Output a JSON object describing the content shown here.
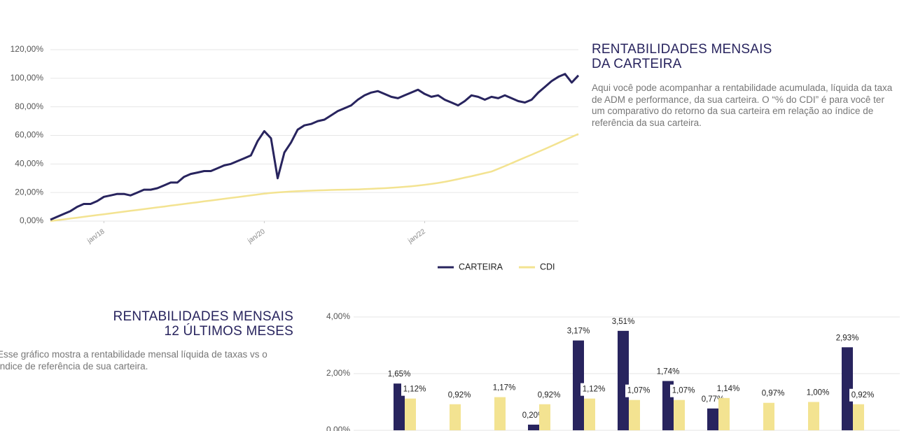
{
  "chart_data": [
    {
      "type": "line",
      "x": [
        "2017-05",
        "2017-06",
        "2017-07",
        "2017-08",
        "2017-09",
        "2017-10",
        "2017-11",
        "2017-12",
        "2018-01",
        "2018-02",
        "2018-03",
        "2018-04",
        "2018-05",
        "2018-06",
        "2018-07",
        "2018-08",
        "2018-09",
        "2018-10",
        "2018-11",
        "2018-12",
        "2019-01",
        "2019-02",
        "2019-03",
        "2019-04",
        "2019-05",
        "2019-06",
        "2019-07",
        "2019-08",
        "2019-09",
        "2019-10",
        "2019-11",
        "2019-12",
        "2020-01",
        "2020-02",
        "2020-03",
        "2020-04",
        "2020-05",
        "2020-06",
        "2020-07",
        "2020-08",
        "2020-09",
        "2020-10",
        "2020-11",
        "2020-12",
        "2021-01",
        "2021-02",
        "2021-03",
        "2021-04",
        "2021-05",
        "2021-06",
        "2021-07",
        "2021-08",
        "2021-09",
        "2021-10",
        "2021-11",
        "2021-12",
        "2022-01",
        "2022-02",
        "2022-03",
        "2022-04",
        "2022-05",
        "2022-06",
        "2022-07",
        "2022-08",
        "2022-09",
        "2022-10",
        "2022-11",
        "2022-12",
        "2023-01",
        "2023-02",
        "2023-03",
        "2023-04",
        "2023-05",
        "2023-06",
        "2023-07",
        "2023-08",
        "2023-09",
        "2023-10",
        "2023-11",
        "2023-12"
      ],
      "series": [
        {
          "name": "CARTEIRA",
          "color": "#28245e",
          "values": [
            1,
            3,
            5,
            7,
            10,
            12,
            12,
            14,
            17,
            18,
            19,
            19,
            18,
            20,
            22,
            22,
            23,
            25,
            27,
            27,
            31,
            33,
            34,
            35,
            35,
            37,
            39,
            40,
            42,
            44,
            46,
            56,
            63,
            58,
            30,
            48,
            55,
            64,
            67,
            68,
            70,
            71,
            74,
            77,
            79,
            81,
            85,
            88,
            90,
            91,
            89,
            87,
            86,
            88,
            90,
            92,
            89,
            87,
            88,
            85,
            83,
            81,
            84,
            88,
            87,
            85,
            87,
            86,
            88,
            86,
            84,
            83,
            85,
            90,
            94,
            98,
            101,
            103,
            97,
            102
          ]
        },
        {
          "name": "CDI",
          "color": "#f3e391",
          "values": [
            0,
            0.6,
            1.2,
            1.8,
            2.4,
            3,
            3.6,
            4.2,
            4.8,
            5.4,
            6,
            6.6,
            7.2,
            7.8,
            8.4,
            9,
            9.6,
            10.2,
            10.8,
            11.4,
            12,
            12.6,
            13.2,
            13.8,
            14.4,
            15,
            15.6,
            16.2,
            16.8,
            17.4,
            18,
            18.6,
            19.2,
            19.7,
            20.1,
            20.4,
            20.7,
            20.9,
            21.1,
            21.3,
            21.5,
            21.6,
            21.8,
            21.9,
            22,
            22.1,
            22.2,
            22.4,
            22.6,
            22.8,
            23,
            23.3,
            23.6,
            24,
            24.4,
            24.9,
            25.4,
            26,
            26.7,
            27.5,
            28.4,
            29.4,
            30.4,
            31.4,
            32.5,
            33.6,
            34.7,
            36.6,
            38.5,
            40.5,
            42.5,
            44.5,
            46.5,
            48.5,
            50.5,
            52.6,
            54.7,
            56.8,
            58.9,
            61
          ]
        }
      ],
      "ylim": [
        0,
        120
      ],
      "yticks": [
        {
          "value": 0,
          "label": "0,00%"
        },
        {
          "value": 20,
          "label": "20,00%"
        },
        {
          "value": 40,
          "label": "40,00%"
        },
        {
          "value": 60,
          "label": "60,00%"
        },
        {
          "value": 80,
          "label": "80,00%"
        },
        {
          "value": 100,
          "label": "100,00%"
        },
        {
          "value": 120,
          "label": "120,00%"
        }
      ],
      "xticks": [
        {
          "value": "2018-01",
          "label": "jan/18"
        },
        {
          "value": "2020-01",
          "label": "jan/20"
        },
        {
          "value": "2022-01",
          "label": "jan/22"
        }
      ],
      "grid": true,
      "legend": "bottom"
    },
    {
      "type": "bar",
      "categories": [
        null,
        null,
        null,
        null,
        null,
        null,
        null,
        null,
        null,
        null,
        null
      ],
      "series": [
        {
          "color": "#28245e",
          "values": [
            1.65,
            null,
            null,
            0.2,
            3.17,
            3.51,
            1.74,
            0.77,
            null,
            null,
            2.93
          ],
          "value_labels": [
            "1,65%",
            null,
            null,
            "0,20%",
            "3,17%",
            "3,51%",
            "1,74%",
            "0,77%",
            null,
            null,
            "2,93%"
          ]
        },
        {
          "color": "#f3e391",
          "values": [
            1.12,
            0.92,
            1.17,
            0.92,
            1.12,
            1.07,
            1.07,
            1.14,
            0.97,
            1.0,
            0.92
          ],
          "value_labels": [
            "1,12%",
            "0,92%",
            "1,17%",
            "0,92%",
            "1,12%",
            "1,07%",
            "1,07%",
            "1,14%",
            "0,97%",
            "1,00%",
            "0,92%"
          ]
        }
      ],
      "ylim": [
        0,
        4
      ],
      "yticks": [
        {
          "value": 0,
          "label": "0,00%"
        },
        {
          "value": 2,
          "label": "2,00%"
        },
        {
          "value": 4,
          "label": "4,00%"
        }
      ],
      "grid": true
    }
  ],
  "sections": [
    {
      "title": [
        "RENTABILIDADES MENSAIS",
        "DA CARTEIRA"
      ],
      "text": "Aqui você pode acompanhar a rentabilidade acumulada, líquida da taxa de ADM e performance, da sua carteira. O “% do CDI” é para você ter um comparativo do retorno da sua carteira em relação ao índice de referência da sua carteira."
    },
    {
      "title": [
        "RENTABILIDADES MENSAIS",
        "12 ÚLTIMOS MESES"
      ],
      "text": "Esse gráfico mostra a rentabilidade mensal líquida de taxas vs o índice de referência de sua carteira."
    }
  ]
}
